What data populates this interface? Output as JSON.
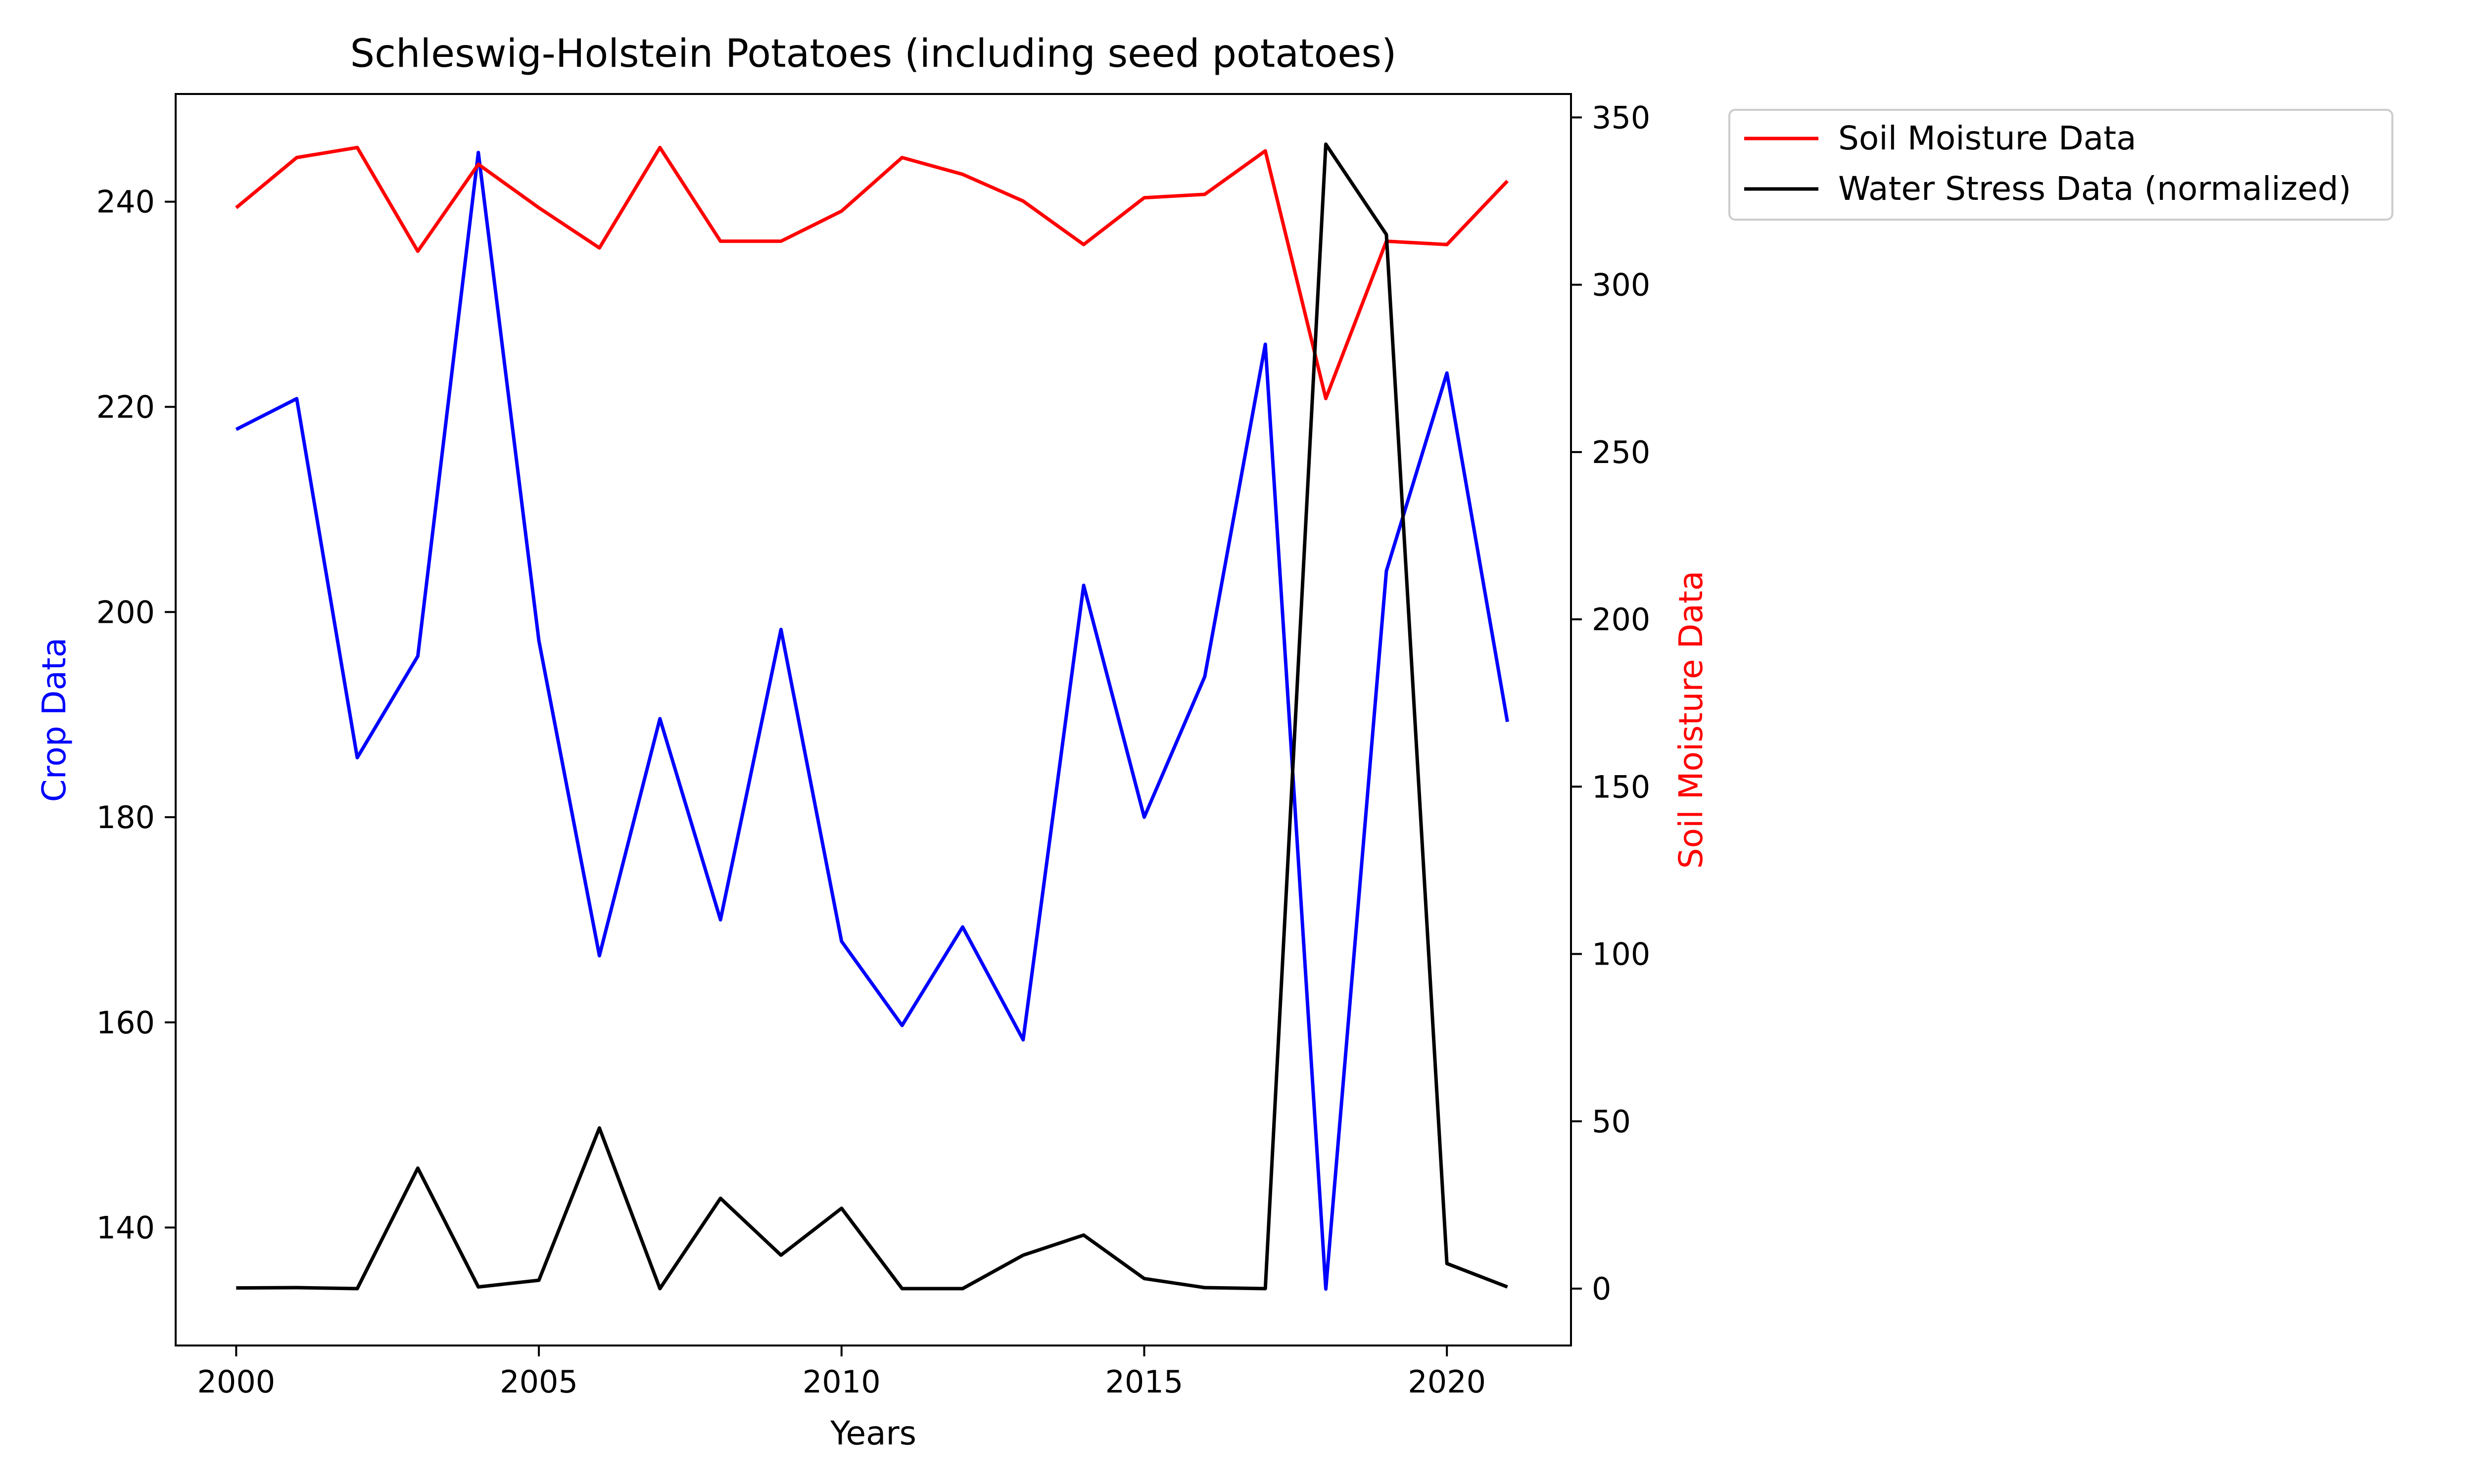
{
  "chart_data": {
    "type": "line",
    "title": "Schleswig-Holstein Potatoes (including seed potatoes)",
    "xlabel": "Years",
    "ylabel_left": "Crop Data",
    "ylabel_right": "Soil Moisture Data",
    "xlim": [
      1999,
      2022.05
    ],
    "ylim_left": [
      128.5,
      250.5
    ],
    "ylim_right": [
      -17,
      357
    ],
    "x_ticks": [
      2000,
      2005,
      2010,
      2015,
      2020
    ],
    "y_ticks_left": [
      140,
      160,
      180,
      200,
      220,
      240
    ],
    "y_ticks_right": [
      0,
      50,
      100,
      150,
      200,
      250,
      300,
      350
    ],
    "grid": false,
    "legend_position": "outside-top-right",
    "x": [
      2000,
      2001,
      2002,
      2003,
      2004,
      2005,
      2006,
      2007,
      2008,
      2009,
      2010,
      2011,
      2012,
      2013,
      2014,
      2015,
      2016,
      2017,
      2018,
      2019,
      2020,
      2021
    ],
    "series": [
      {
        "key": "crop",
        "axis": "left",
        "color": "#0000ff",
        "values": [
          217.8,
          220.8,
          185.8,
          195.7,
          244.8,
          197.2,
          166.5,
          189.6,
          170.0,
          198.3,
          167.9,
          159.7,
          169.3,
          158.3,
          202.6,
          180.0,
          193.7,
          226.1,
          134.0,
          204.0,
          223.3,
          189.3
        ]
      },
      {
        "key": "soil",
        "name": "Soil Moisture Data",
        "axis": "right",
        "color": "#ff0000",
        "values": [
          323,
          338,
          341,
          310,
          336,
          323,
          311,
          341,
          313,
          313,
          322,
          338,
          333,
          325,
          312,
          326,
          327,
          340,
          266,
          313,
          312,
          331
        ]
      },
      {
        "key": "stress",
        "name": "Water Stress Data (normalized)",
        "axis": "right",
        "color": "#000000",
        "values": [
          0.2,
          0.3,
          0,
          36,
          0.5,
          2.5,
          48,
          0,
          27,
          10,
          24,
          0,
          0,
          10,
          16,
          3,
          0.3,
          0,
          342,
          315,
          7.5,
          0.5
        ]
      }
    ]
  }
}
